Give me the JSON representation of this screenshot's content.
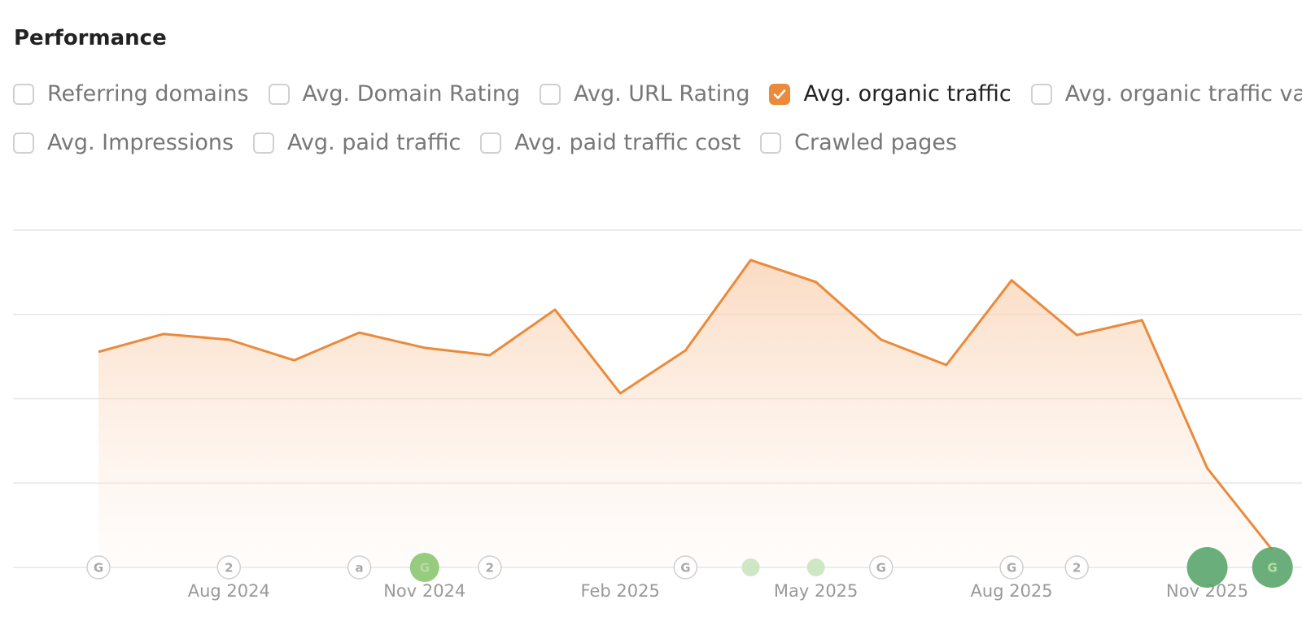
{
  "title": "Performance",
  "metrics": [
    {
      "label": "Referring domains",
      "checked": false
    },
    {
      "label": "Avg. Domain Rating",
      "checked": false
    },
    {
      "label": "Avg. URL Rating",
      "checked": false
    },
    {
      "label": "Avg. organic traffic",
      "checked": true
    },
    {
      "label": "Avg. organic traffic value",
      "checked": false
    },
    {
      "label": "Avg. Impressions",
      "checked": false
    },
    {
      "label": "Avg. paid traffic",
      "checked": false
    },
    {
      "label": "Avg. paid traffic cost",
      "checked": false
    },
    {
      "label": "Crawled pages",
      "checked": false
    }
  ],
  "chart_data": {
    "type": "area",
    "categories": [
      null,
      null,
      "Aug 2024",
      null,
      null,
      "Nov 2024",
      null,
      null,
      "Feb 2025",
      null,
      null,
      "May 2025",
      null,
      null,
      "Aug 2025",
      null,
      null,
      "Nov 2025",
      null
    ],
    "series": [
      {
        "name": "Avg. organic traffic",
        "color": "#ea8a3a",
        "values": [
          63.9,
          69.2,
          67.5,
          61.4,
          69.6,
          65.1,
          62.9,
          76.4,
          51.6,
          64.3,
          91.1,
          84.6,
          67.5,
          60.0,
          85.1,
          68.9,
          73.3,
          29.4,
          5.1
        ]
      }
    ],
    "ylim": [
      0,
      100
    ],
    "yticks": [
      0,
      25,
      50,
      75,
      100
    ],
    "grid": true,
    "events": [
      {
        "index": 0,
        "label": "G",
        "color": "#ffffff"
      },
      {
        "index": 2,
        "label": "2",
        "color": "#ffffff"
      },
      {
        "index": 4,
        "label": "a",
        "color": "#ffffff"
      },
      {
        "index": 5,
        "label": "G",
        "color": "#8cc56f"
      },
      {
        "index": 6,
        "label": "2",
        "color": "#ffffff"
      },
      {
        "index": 9,
        "label": "G",
        "color": "#ffffff"
      },
      {
        "index": 10,
        "color": "#c9e5c0"
      },
      {
        "index": 11,
        "color": "#c9e5c0"
      },
      {
        "index": 12,
        "label": "G",
        "color": "#ffffff"
      },
      {
        "index": 14,
        "label": "G",
        "color": "#ffffff"
      },
      {
        "index": 15,
        "label": "2",
        "color": "#ffffff"
      },
      {
        "index": 17,
        "color": "#5aa66d"
      },
      {
        "index": 18,
        "label": "G",
        "color": "#5aa66d"
      }
    ]
  }
}
